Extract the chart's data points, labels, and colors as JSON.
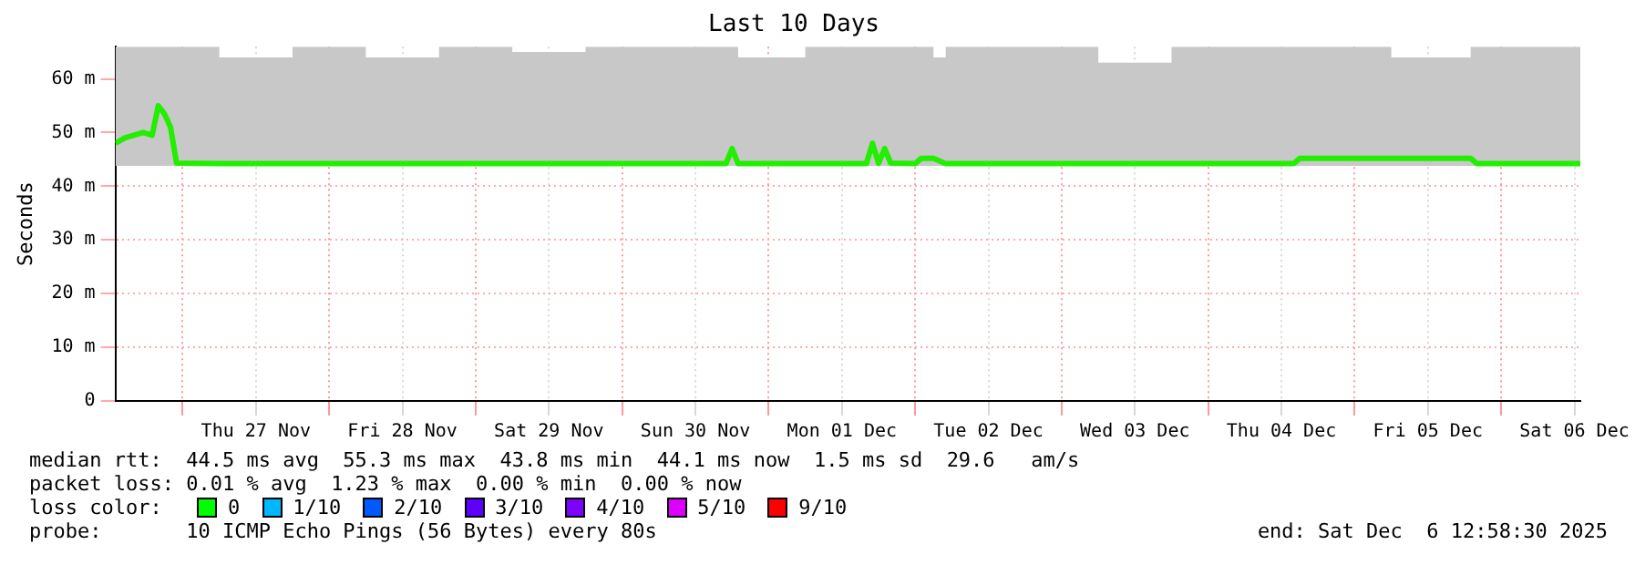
{
  "chart_data": {
    "type": "line",
    "title": "Last 10 Days",
    "ylabel": "Seconds",
    "x": [
      "2025-11-26T13:00",
      "2025-11-26T14:30",
      "2025-11-26T16:00",
      "2025-11-26T17:30",
      "2025-11-26T19:00",
      "2025-11-26T20:00",
      "2025-11-26T21:00",
      "2025-11-26T22:00",
      "2025-11-26T23:00",
      "2025-11-27T06:00",
      "2025-11-27T18:00",
      "2025-11-28T06:00",
      "2025-11-28T18:00",
      "2025-11-29T06:00",
      "2025-11-29T18:00",
      "2025-11-30T06:00",
      "2025-11-30T17:00",
      "2025-11-30T18:00",
      "2025-11-30T19:00",
      "2025-12-01T06:00",
      "2025-12-01T16:00",
      "2025-12-01T17:00",
      "2025-12-01T18:00",
      "2025-12-01T19:00",
      "2025-12-01T20:00",
      "2025-12-02T00:00",
      "2025-12-02T01:00",
      "2025-12-02T03:00",
      "2025-12-02T05:00",
      "2025-12-02T18:00",
      "2025-12-03T06:00",
      "2025-12-03T18:00",
      "2025-12-04T06:00",
      "2025-12-04T14:00",
      "2025-12-04T15:00",
      "2025-12-05T06:00",
      "2025-12-05T19:00",
      "2025-12-05T20:00",
      "2025-12-06T06:00",
      "2025-12-06T12:58"
    ],
    "series": [
      {
        "color": "#22ee00",
        "values": [
          48,
          49,
          49.5,
          50,
          49.5,
          55,
          53.5,
          51,
          44.3,
          44.2,
          44.2,
          44.2,
          44.2,
          44.2,
          44.2,
          44.2,
          44.2,
          47,
          44.2,
          44.2,
          44.2,
          48,
          44.3,
          47,
          44.3,
          44.2,
          45.2,
          45.2,
          44.2,
          44.2,
          44.2,
          44.2,
          44.2,
          44.2,
          45.2,
          45.2,
          45.2,
          44.2,
          44.2,
          44.2
        ],
        "lower": [
          43.8,
          43.8,
          43.8,
          43.8,
          43.8,
          43.8,
          43.8,
          43.8,
          43.8,
          43.8,
          43.8,
          43.8,
          43.8,
          43.8,
          43.8,
          43.8,
          43.8,
          43.8,
          43.8,
          43.8,
          43.8,
          43.8,
          43.8,
          43.8,
          43.8,
          43.8,
          43.8,
          43.8,
          43.8,
          43.8,
          43.8,
          43.8,
          43.8,
          43.8,
          43.8,
          43.8,
          43.8,
          43.8,
          43.8,
          43.8
        ],
        "upper": [
          66,
          66,
          66,
          66,
          66,
          66,
          66,
          66,
          66,
          64,
          66,
          64,
          66,
          65,
          66,
          66,
          66,
          66,
          64,
          66,
          66,
          66,
          66,
          66,
          66,
          66,
          66,
          64,
          66,
          66,
          63,
          66,
          66,
          66,
          66,
          64,
          66,
          66,
          66,
          66
        ]
      }
    ],
    "xlim": [
      "2025-11-26T12:58",
      "2025-12-06T12:58"
    ],
    "xticks": [
      {
        "value": "2025-11-27T00:00",
        "label": null
      },
      {
        "value": "2025-11-27T12:00",
        "label": "Thu 27 Nov"
      },
      {
        "value": "2025-11-28T00:00",
        "label": null
      },
      {
        "value": "2025-11-28T12:00",
        "label": "Fri 28 Nov"
      },
      {
        "value": "2025-11-29T00:00",
        "label": null
      },
      {
        "value": "2025-11-29T12:00",
        "label": "Sat 29 Nov"
      },
      {
        "value": "2025-11-30T00:00",
        "label": null
      },
      {
        "value": "2025-11-30T12:00",
        "label": "Sun 30 Nov"
      },
      {
        "value": "2025-12-01T00:00",
        "label": null
      },
      {
        "value": "2025-12-01T12:00",
        "label": "Mon 01 Dec"
      },
      {
        "value": "2025-12-02T00:00",
        "label": null
      },
      {
        "value": "2025-12-02T12:00",
        "label": "Tue 02 Dec"
      },
      {
        "value": "2025-12-03T00:00",
        "label": null
      },
      {
        "value": "2025-12-03T12:00",
        "label": "Wed 03 Dec"
      },
      {
        "value": "2025-12-04T00:00",
        "label": null
      },
      {
        "value": "2025-12-04T12:00",
        "label": "Thu 04 Dec"
      },
      {
        "value": "2025-12-05T00:00",
        "label": null
      },
      {
        "value": "2025-12-05T12:00",
        "label": "Fri 05 Dec"
      },
      {
        "value": "2025-12-06T00:00",
        "label": null
      },
      {
        "value": "2025-12-06T12:00",
        "label": "Sat 06 Dec"
      }
    ],
    "ylim": [
      0,
      66
    ],
    "yticks": [
      0,
      {
        "value": 10,
        "label": "10 m"
      },
      {
        "value": 20,
        "label": "20 m"
      },
      {
        "value": 30,
        "label": "30 m"
      },
      {
        "value": 40,
        "label": "40 m"
      },
      {
        "value": 50,
        "label": "50 m"
      },
      {
        "value": 60,
        "label": "60 m"
      }
    ],
    "grid": true,
    "legend": false,
    "marker": "none",
    "line_style": "solid",
    "annotations": [
      "median rtt:  44.5 ms avg  55.3 ms max  43.8 ms min  44.1 ms now  1.5 ms sd  29.6   am/s",
      "packet loss: 0.01 % avg  1.23 % max  0.00 % min  0.00 % now",
      "loss color:",
      "0",
      "1/10",
      "2/10",
      "3/10",
      "4/10",
      "5/10",
      "9/10",
      "probe:       10 ICMP Echo Pings (56 Bytes) every 80s",
      "end: Sat Dec  6 12:58:30 2025"
    ]
  }
}
